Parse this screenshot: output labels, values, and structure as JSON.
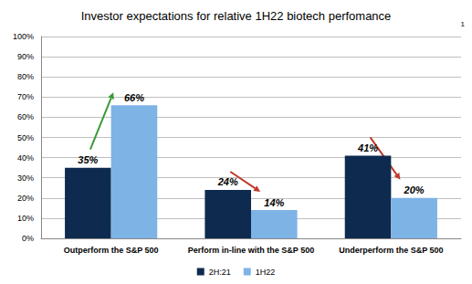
{
  "chart_data": {
    "type": "bar",
    "title": "Investor expectations for relative 1H22 biotech perfomance",
    "annotations": [
      "1"
    ],
    "categories": [
      "Outperform the S&P 500",
      "Perform in-line with the S&P 500",
      "Underperform the S&P 500"
    ],
    "series": [
      {
        "name": "2H:21",
        "color": "#0e2a4f",
        "values": [
          35,
          24,
          41
        ],
        "value_labels": [
          "35%",
          "24%",
          "41%"
        ]
      },
      {
        "name": "1H22",
        "color": "#7eb3e6",
        "values": [
          66,
          14,
          20
        ],
        "value_labels": [
          "66%",
          "14%",
          "20%"
        ]
      }
    ],
    "ylim": [
      0,
      100
    ],
    "yticks": [
      {
        "value": 0,
        "label": "0%"
      },
      {
        "value": 10,
        "label": "10%"
      },
      {
        "value": 20,
        "label": "20%"
      },
      {
        "value": 30,
        "label": "30%"
      },
      {
        "value": 40,
        "label": "40%"
      },
      {
        "value": 50,
        "label": "50%"
      },
      {
        "value": 60,
        "label": "60%"
      },
      {
        "value": 70,
        "label": "70%"
      },
      {
        "value": 80,
        "label": "80%"
      },
      {
        "value": 90,
        "label": "90%"
      },
      {
        "value": 100,
        "label": "100%"
      }
    ],
    "grid": true,
    "legend": "bottom",
    "data_labels": true
  }
}
